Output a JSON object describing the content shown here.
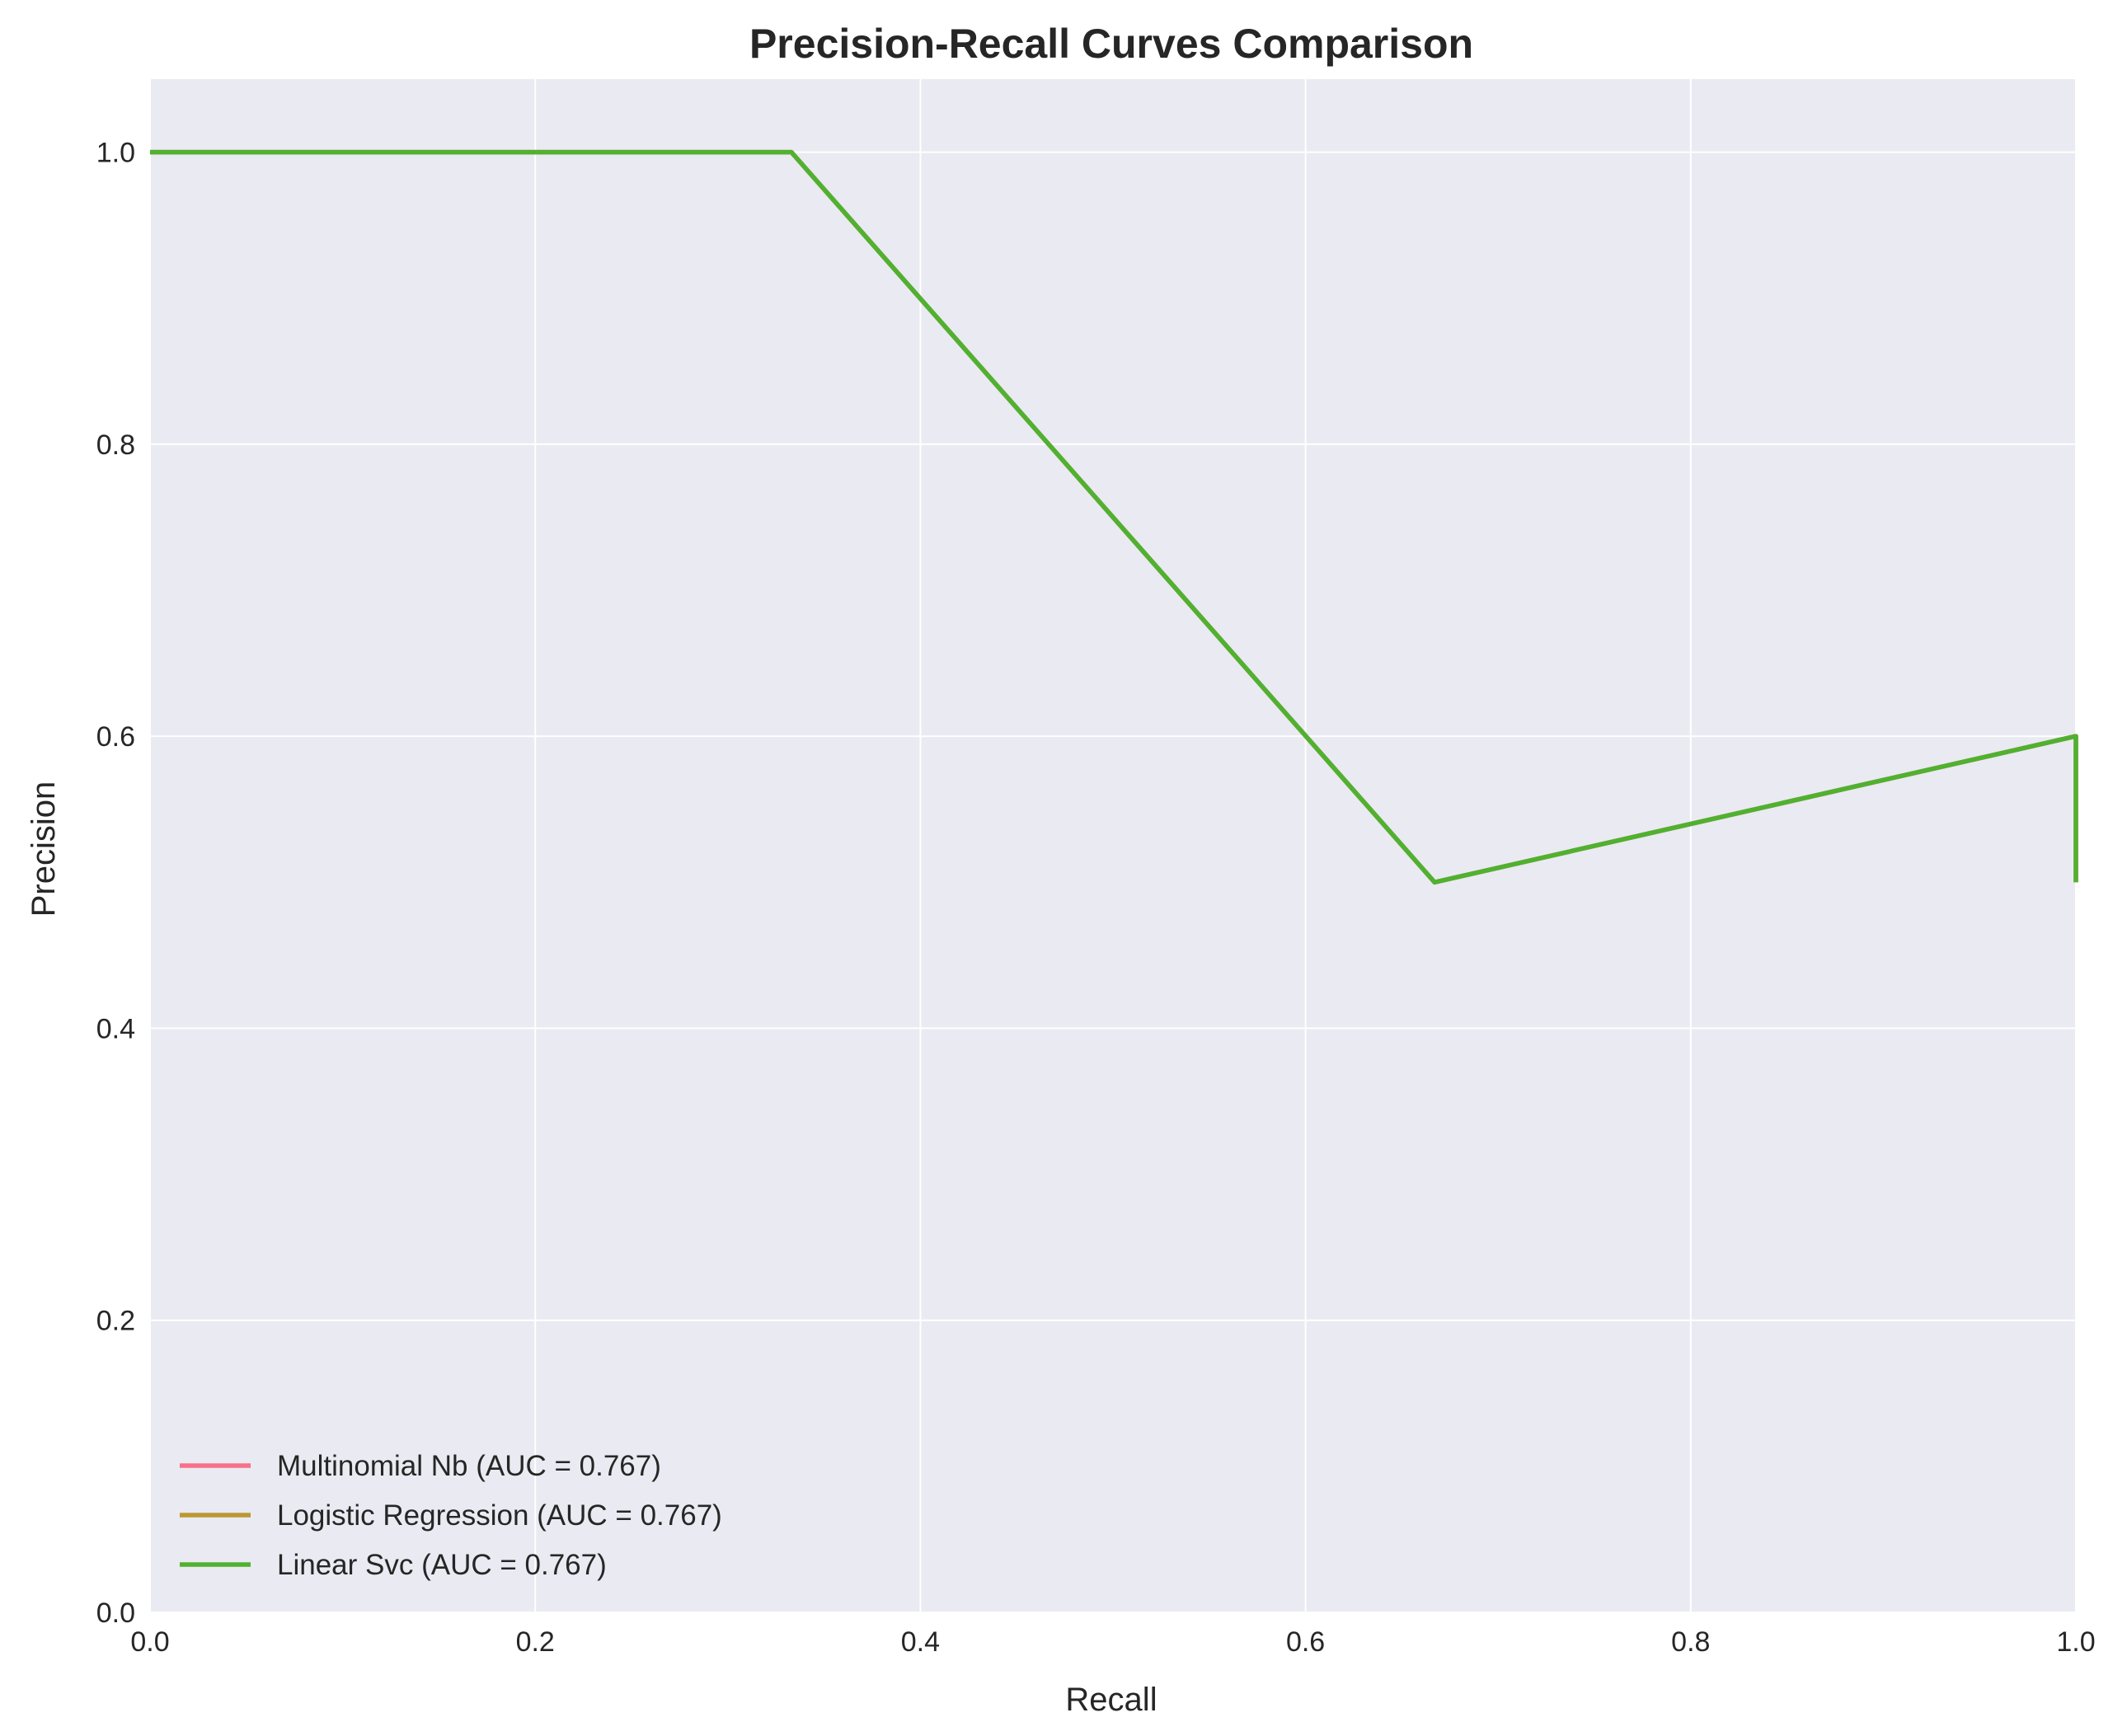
{
  "chart_data": {
    "type": "line",
    "title": "Precision-Recall Curves Comparison",
    "xlabel": "Recall",
    "ylabel": "Precision",
    "xlim": [
      0.0,
      1.0
    ],
    "ylim": [
      0.0,
      1.05
    ],
    "xticks": [
      0.0,
      0.2,
      0.4,
      0.6,
      0.8,
      1.0
    ],
    "xtick_labels": [
      "0.0",
      "0.2",
      "0.4",
      "0.6",
      "0.8",
      "1.0"
    ],
    "yticks": [
      0.0,
      0.2,
      0.4,
      0.6,
      0.8,
      1.0
    ],
    "ytick_labels": [
      "0.0",
      "0.2",
      "0.4",
      "0.6",
      "0.8",
      "1.0"
    ],
    "grid": true,
    "legend_position": "lower-left",
    "background": "#eaeaf2",
    "series": [
      {
        "name": "Multinomial Nb (AUC = 0.767)",
        "color": "#f77189",
        "x": [
          0.0,
          0.333,
          0.667,
          1.0,
          1.0
        ],
        "y": [
          1.0,
          1.0,
          0.5,
          0.6,
          0.5
        ]
      },
      {
        "name": "Logistic Regression (AUC = 0.767)",
        "color": "#bb9832",
        "x": [
          0.0,
          0.333,
          0.667,
          1.0,
          1.0
        ],
        "y": [
          1.0,
          1.0,
          0.5,
          0.6,
          0.5
        ]
      },
      {
        "name": "Linear Svc (AUC = 0.767)",
        "color": "#50b131",
        "x": [
          0.0,
          0.333,
          0.667,
          1.0,
          1.0
        ],
        "y": [
          1.0,
          1.0,
          0.5,
          0.6,
          0.5
        ]
      }
    ]
  }
}
